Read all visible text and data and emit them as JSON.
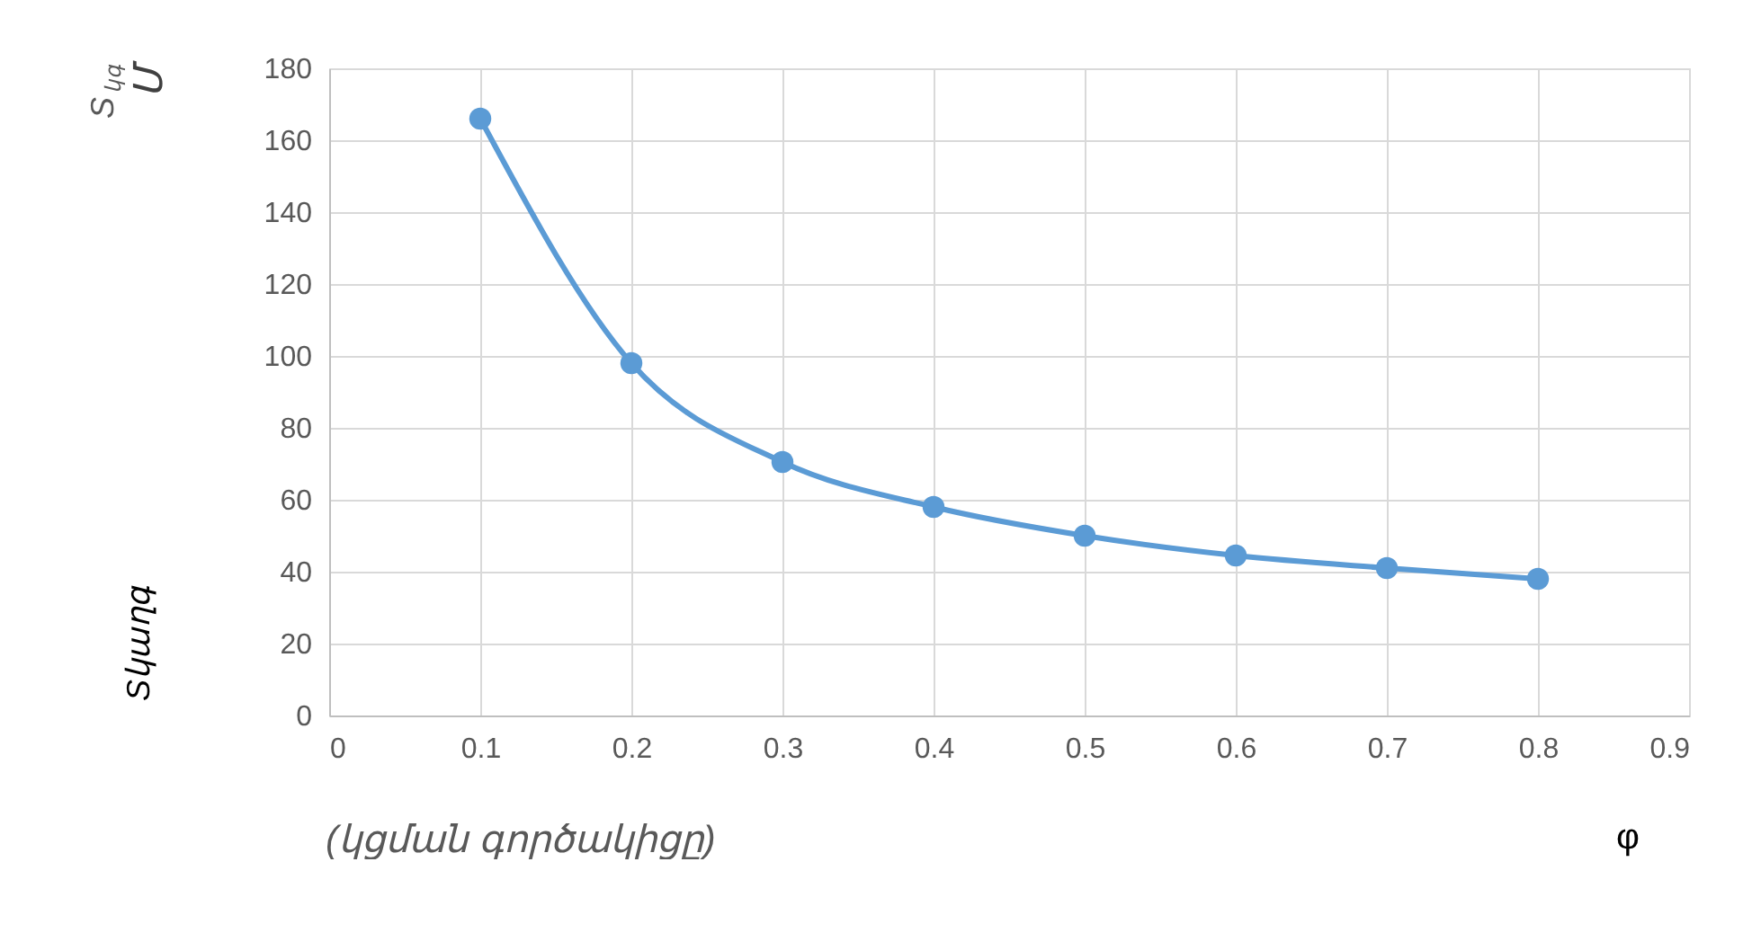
{
  "chart_data": {
    "type": "line",
    "x": [
      0.1,
      0.2,
      0.3,
      0.4,
      0.5,
      0.6,
      0.7,
      0.8
    ],
    "series": [
      {
        "color": "#5b9bd5",
        "values": [
          166,
          98,
          70.5,
          58,
          50,
          44.5,
          41,
          38
        ]
      }
    ],
    "xlim": [
      0,
      0.9
    ],
    "xticks": [
      0,
      0.1,
      0.2,
      0.3,
      0.4,
      0.5,
      0.6,
      0.7,
      0.8,
      0.9
    ],
    "ylim": [
      0,
      180
    ],
    "yticks": [
      0,
      20,
      40,
      60,
      80,
      100,
      120,
      140,
      160,
      180
    ],
    "xlabel": "(կցման գործակիցը)",
    "ylabel": "S$_{կգ}$",
    "annotations": [
      "Մ",
      "Sկաղգ",
      "φ"
    ],
    "grid": true,
    "marker": "circle",
    "line_style": "solid"
  }
}
